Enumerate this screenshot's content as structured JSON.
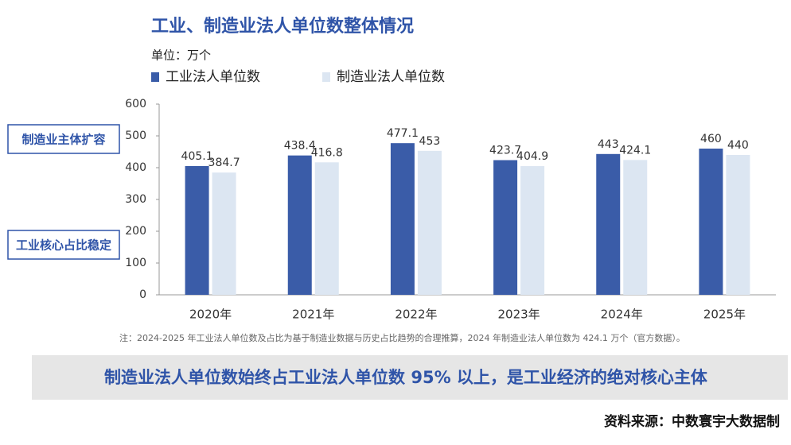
{
  "chart_data": {
    "type": "bar",
    "title": "工业、制造业法人单位数整体情况",
    "unit_label": "单位：万个",
    "categories": [
      "2020年",
      "2021年",
      "2022年",
      "2023年",
      "2024年",
      "2025年"
    ],
    "series": [
      {
        "name": "工业法人单位数",
        "color": "#3a5ca8",
        "values": [
          405.1,
          438.4,
          477.1,
          423.7,
          443,
          460
        ]
      },
      {
        "name": "制造业法人单位数",
        "color": "#dce6f2",
        "values": [
          384.7,
          416.8,
          453,
          404.9,
          424.1,
          440
        ]
      }
    ],
    "ylim": [
      0,
      600
    ],
    "yticks": [
      0,
      100,
      200,
      300,
      400,
      500,
      600
    ],
    "grid": false
  },
  "side_labels": [
    "制造业主体扩容",
    "工业核心占比稳定"
  ],
  "note": "注：2024-2025 年工业法人单位数及占比为基于制造业数据与历史占比趋势的合理推算，2024 年制造业法人单位数为 424.1 万个（官方数据）。",
  "banner": "制造业法人单位数始终占工业法人单位数 95% 以上，是工业经济的绝对核心主体",
  "source": "资料来源：中数寰宇大数据制"
}
